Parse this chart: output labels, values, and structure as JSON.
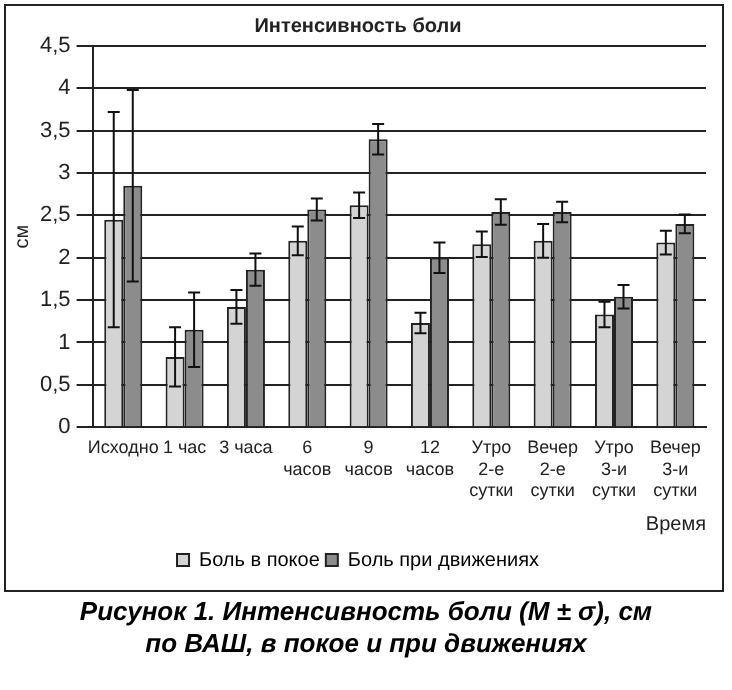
{
  "chart_data": {
    "type": "bar",
    "title": "Интенсивность боли",
    "xlabel": "Время",
    "ylabel": "см",
    "categories": [
      "Исходно",
      "1 час",
      "3 часа",
      "6\nчасов",
      "9\nчасов",
      "12\nчасов",
      "Утро\n2-е\nсутки",
      "Вечер\n2-е\nсутки",
      "Утро\n3-и\nсутки",
      "Вечер\n3-и\nсутки"
    ],
    "series": [
      {
        "name": "Боль в покое",
        "color": "#d4d4d4",
        "values": [
          2.45,
          0.83,
          1.42,
          2.2,
          2.62,
          1.23,
          2.16,
          2.2,
          1.33,
          2.18
        ],
        "errors": [
          1.27,
          0.35,
          0.2,
          0.17,
          0.15,
          0.12,
          0.15,
          0.2,
          0.15,
          0.14
        ]
      },
      {
        "name": "Боль при движениях",
        "color": "#8c8c8c",
        "values": [
          2.85,
          1.15,
          1.86,
          2.57,
          3.4,
          2.0,
          2.54,
          2.54,
          1.54,
          2.4
        ],
        "errors": [
          1.13,
          0.44,
          0.19,
          0.13,
          0.18,
          0.18,
          0.15,
          0.12,
          0.14,
          0.11
        ]
      }
    ],
    "ylim": [
      0,
      4.5
    ],
    "yticks": [
      0,
      {
        "value": 0.5,
        "label": "0,5"
      },
      1,
      {
        "value": 1.5,
        "label": "1,5"
      },
      2,
      {
        "value": 2.5,
        "label": "2,5"
      },
      3,
      {
        "value": 3.5,
        "label": "3,5"
      },
      4,
      {
        "value": 4.5,
        "label": "4,5"
      }
    ],
    "grid": "y",
    "legend": "bottom",
    "annotations": [
      "Рисунок 1. Интенсивность боли (M ± σ), см\nпо ВАШ, в покое и при движениях"
    ]
  }
}
